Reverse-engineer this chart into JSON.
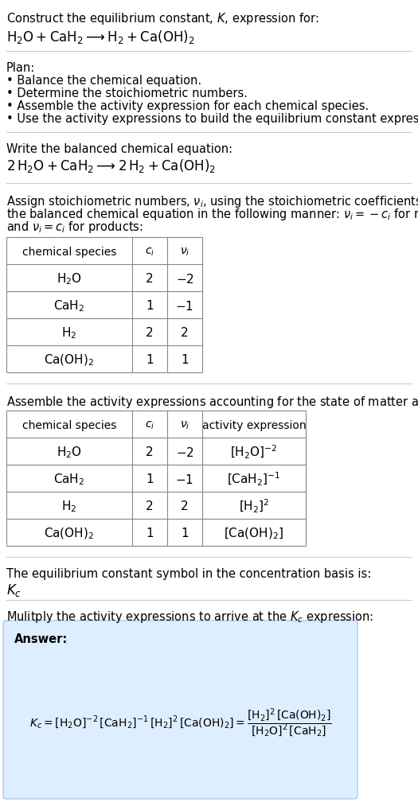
{
  "bg_color": "#ffffff",
  "answer_box_color": "#ddeeff",
  "answer_box_edge": "#aaccee",
  "title_line1": "Construct the equilibrium constant, $K$, expression for:",
  "title_eq": "$\\mathrm{H_2O + CaH_2 \\longrightarrow H_2 + Ca(OH)_2}$",
  "plan_header": "Plan:",
  "plan_items": [
    "• Balance the chemical equation.",
    "• Determine the stoichiometric numbers.",
    "• Assemble the activity expression for each chemical species.",
    "• Use the activity expressions to build the equilibrium constant expression."
  ],
  "balanced_header": "Write the balanced chemical equation:",
  "balanced_eq": "$\\mathrm{2\\,H_2O + CaH_2 \\longrightarrow 2\\,H_2 + Ca(OH)_2}$",
  "stoich_intro_lines": [
    "Assign stoichiometric numbers, $\\nu_i$, using the stoichiometric coefficients, $c_i$, from",
    "the balanced chemical equation in the following manner: $\\nu_i = -c_i$ for reactants",
    "and $\\nu_i = c_i$ for products:"
  ],
  "table1_headers": [
    "chemical species",
    "$c_i$",
    "$\\nu_i$"
  ],
  "table1_rows": [
    [
      "$\\mathrm{H_2O}$",
      "2",
      "$-2$"
    ],
    [
      "$\\mathrm{CaH_2}$",
      "1",
      "$-1$"
    ],
    [
      "$\\mathrm{H_2}$",
      "2",
      "2"
    ],
    [
      "$\\mathrm{Ca(OH)_2}$",
      "1",
      "1"
    ]
  ],
  "activity_intro": "Assemble the activity expressions accounting for the state of matter and $\\nu_i$:",
  "table2_headers": [
    "chemical species",
    "$c_i$",
    "$\\nu_i$",
    "activity expression"
  ],
  "table2_rows": [
    [
      "$\\mathrm{H_2O}$",
      "2",
      "$-2$",
      "$[\\mathrm{H_2O}]^{-2}$"
    ],
    [
      "$\\mathrm{CaH_2}$",
      "1",
      "$-1$",
      "$[\\mathrm{CaH_2}]^{-1}$"
    ],
    [
      "$\\mathrm{H_2}$",
      "2",
      "2",
      "$[\\mathrm{H_2}]^{2}$"
    ],
    [
      "$\\mathrm{Ca(OH)_2}$",
      "1",
      "1",
      "$[\\mathrm{Ca(OH)_2}]$"
    ]
  ],
  "kc_header": "The equilibrium constant symbol in the concentration basis is:",
  "kc_symbol": "$K_c$",
  "multiply_header": "Mulitply the activity expressions to arrive at the $K_c$ expression:",
  "answer_label": "Answer:",
  "answer_eq": "$K_c = [\\mathrm{H_2O}]^{-2}\\,[\\mathrm{CaH_2}]^{-1}\\,[\\mathrm{H_2}]^{2}\\,[\\mathrm{Ca(OH)_2}] = \\dfrac{[\\mathrm{H_2}]^{2}\\,[\\mathrm{Ca(OH)_2}]}{[\\mathrm{H_2O}]^{2}\\,[\\mathrm{CaH_2}]}$"
}
